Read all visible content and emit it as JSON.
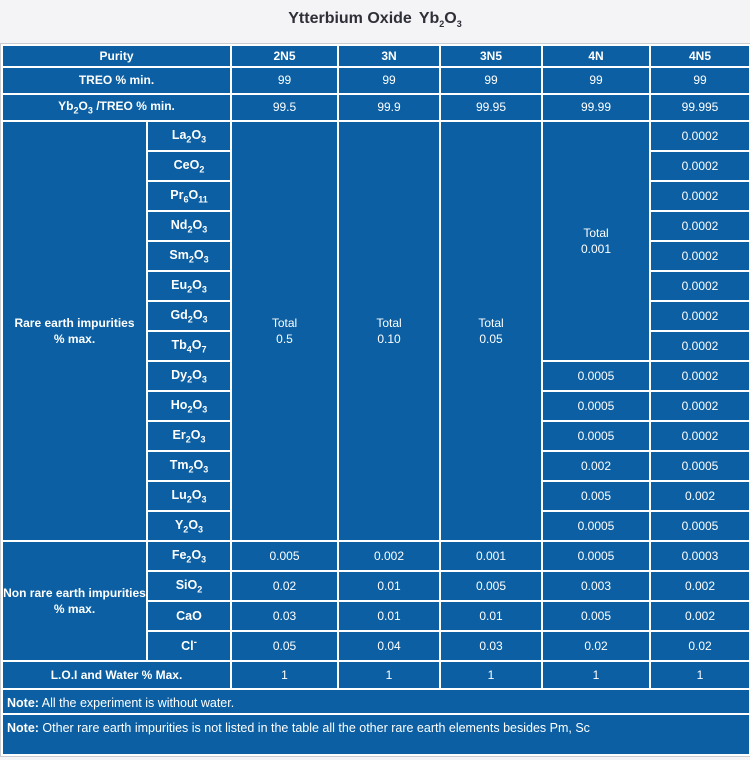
{
  "title": {
    "text": "Ytterbium Oxide",
    "formula": "Yb_{2}O_{3}"
  },
  "colors": {
    "cell_blue": "#0B5FA2",
    "page_bg": "#f4f4f6",
    "cell_text": "#ffffff",
    "title_text": "#2F2F38",
    "grid_border": "#ffffff",
    "outer_border": "#c9ccd0"
  },
  "table": {
    "purity_row": {
      "label": "Purity",
      "grades": [
        "2N5",
        "3N",
        "3N5",
        "4N",
        "4N5"
      ]
    },
    "treo_row": {
      "label": "TREO % min.",
      "values": [
        "99",
        "99",
        "99",
        "99",
        "99"
      ]
    },
    "ratio_row": {
      "label_formula": "Yb_{2}O_{3} /TREO % min.",
      "values": [
        "99.5",
        "99.9",
        "99.95",
        "99.99",
        "99.995"
      ]
    },
    "rare_earth": {
      "category_lines": [
        "Rare earth impurities",
        "% max."
      ],
      "merged_totals": {
        "n2n5": {
          "lines": [
            "Total",
            "0.5"
          ],
          "span": 14
        },
        "n3n": {
          "lines": [
            "Total",
            "0.10"
          ],
          "span": 14
        },
        "n3n5": {
          "lines": [
            "Total",
            "0.05"
          ],
          "span": 14
        },
        "n4n": {
          "lines": [
            "Total",
            "0.001"
          ],
          "span": 8
        }
      },
      "rows": [
        {
          "formula": "La_{2}O_{3}",
          "v4n": null,
          "v4n5": "0.0002"
        },
        {
          "formula": "CeO_{2}",
          "v4n": null,
          "v4n5": "0.0002"
        },
        {
          "formula": "Pr_{6}O_{11}",
          "v4n": null,
          "v4n5": "0.0002"
        },
        {
          "formula": "Nd_{2}O_{3}",
          "v4n": null,
          "v4n5": "0.0002"
        },
        {
          "formula": "Sm_{2}O_{3}",
          "v4n": null,
          "v4n5": "0.0002"
        },
        {
          "formula": "Eu_{2}O_{3}",
          "v4n": null,
          "v4n5": "0.0002"
        },
        {
          "formula": "Gd_{2}O_{3}",
          "v4n": null,
          "v4n5": "0.0002"
        },
        {
          "formula": "Tb_{4}O_{7}",
          "v4n": null,
          "v4n5": "0.0002"
        },
        {
          "formula": "Dy_{2}O_{3}",
          "v4n": "0.0005",
          "v4n5": "0.0002"
        },
        {
          "formula": "Ho_{2}O_{3}",
          "v4n": "0.0005",
          "v4n5": "0.0002"
        },
        {
          "formula": "Er_{2}O_{3}",
          "v4n": "0.0005",
          "v4n5": "0.0002"
        },
        {
          "formula": "Tm_{2}O_{3}",
          "v4n": "0.002",
          "v4n5": "0.0005"
        },
        {
          "formula": "Lu_{2}O_{3}",
          "v4n": "0.005",
          "v4n5": "0.002"
        },
        {
          "formula": "Y_{2}O_{3}",
          "v4n": "0.0005",
          "v4n5": "0.0005"
        }
      ]
    },
    "non_rare_earth": {
      "category_lines": [
        "Non rare earth impurities",
        "% max."
      ],
      "rows": [
        {
          "formula": "Fe_{2}O_{3}",
          "values": [
            "0.005",
            "0.002",
            "0.001",
            "0.0005",
            "0.0003"
          ]
        },
        {
          "formula": "SiO_{2}",
          "values": [
            "0.02",
            "0.01",
            "0.005",
            "0.003",
            "0.002"
          ]
        },
        {
          "formula": "CaO",
          "values": [
            "0.03",
            "0.01",
            "0.01",
            "0.005",
            "0.002"
          ]
        },
        {
          "formula": "Cl^{-}",
          "values": [
            "0.05",
            "0.04",
            "0.03",
            "0.02",
            "0.02"
          ]
        }
      ]
    },
    "loi_row": {
      "label": "L.O.I and Water % Max.",
      "values": [
        "1",
        "1",
        "1",
        "1",
        "1"
      ]
    },
    "notes": [
      {
        "prefix": "Note:",
        "text": " All the experiment is without water."
      },
      {
        "prefix": "Note:",
        "text": " Other rare earth impurities is not listed in the table all the other rare earth elements besides Pm, Sc"
      }
    ]
  }
}
